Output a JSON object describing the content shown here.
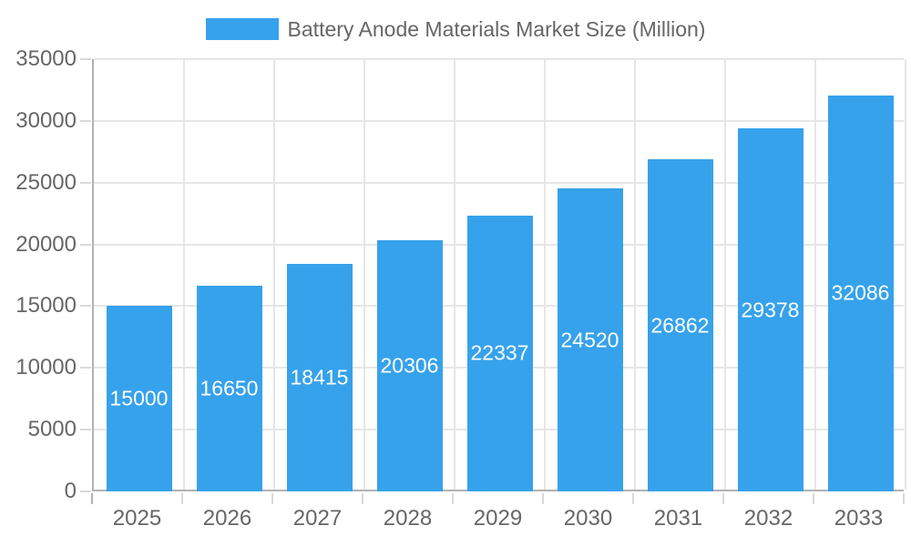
{
  "legend": {
    "label": "Battery Anode Materials Market Size (Million)",
    "swatch_color": "#36a2eb"
  },
  "chart_data": {
    "type": "bar",
    "title": "Battery Anode Materials Market Size (Million)",
    "categories": [
      "2025",
      "2026",
      "2027",
      "2028",
      "2029",
      "2030",
      "2031",
      "2032",
      "2033"
    ],
    "series": [
      {
        "name": "Battery Anode Materials Market Size (Million)",
        "values": [
          15000,
          16650,
          18415,
          20306,
          22337,
          24520,
          26862,
          29378,
          32086
        ]
      }
    ],
    "value_labels": [
      "15000",
      "16650",
      "18415",
      "20306",
      "22337",
      "24520",
      "26862",
      "29378",
      "32086"
    ],
    "xlabel": "",
    "ylabel": "",
    "ylim": [
      0,
      35000
    ],
    "ytick_step": 5000,
    "yticks": [
      "0",
      "5000",
      "10000",
      "15000",
      "20000",
      "25000",
      "30000",
      "35000"
    ],
    "grid": true,
    "legend_position": "top",
    "bar_color": "#36a2eb",
    "bar_label_color": "#ffffff",
    "axis_text_color": "#666666",
    "grid_color": "#e6e6e6",
    "axis_line_color": "#b2b2b2"
  }
}
